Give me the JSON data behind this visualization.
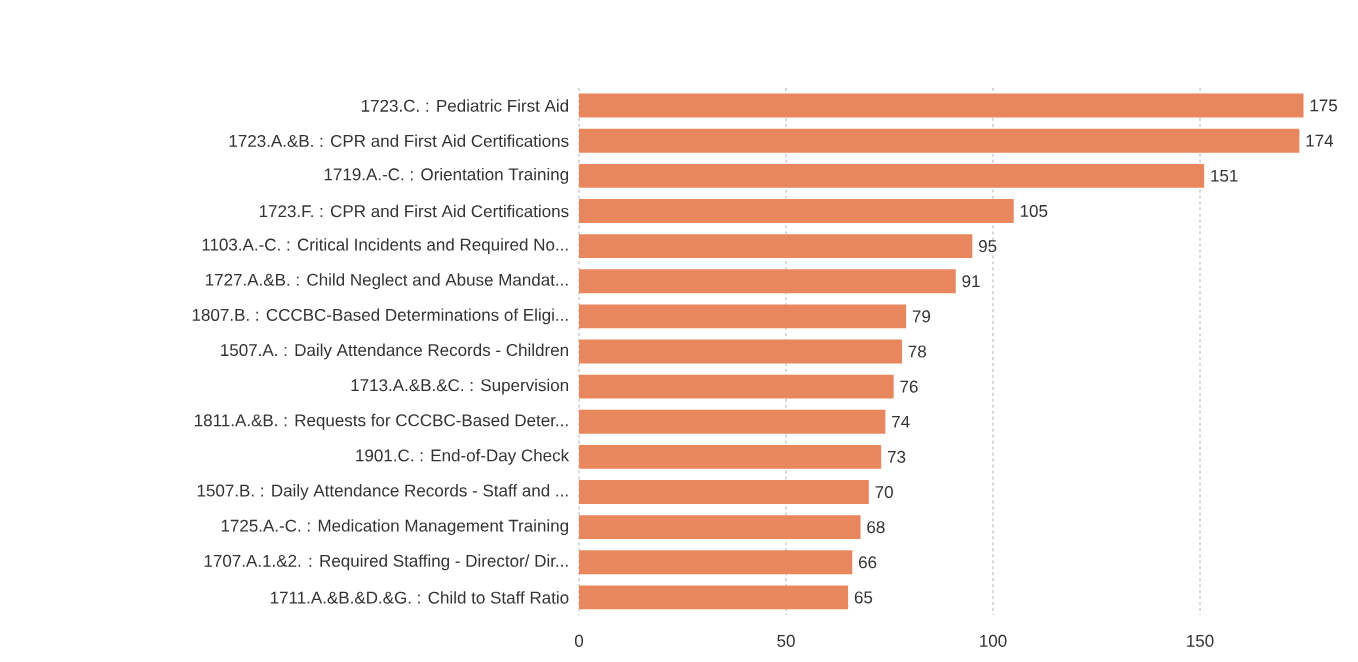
{
  "chart_data": {
    "type": "bar",
    "orientation": "horizontal",
    "categories": [
      "1723.C. : Pediatric First Aid",
      "1723.A.&B. : CPR and First Aid Certifications",
      "1719.A.-C. : Orientation Training",
      "1723.F. : CPR and First Aid Certifications",
      "1103.A.-C. : Critical Incidents and Required No...",
      "1727.A.&B. : Child Neglect and Abuse Mandat...",
      "1807.B. : CCCBC-Based Determinations of Eligi...",
      "1507.A. : Daily Attendance Records - Children",
      "1713.A.&B.&C. : Supervision",
      "1811.A.&B. : Requests for CCCBC-Based Deter...",
      "1901.C. : End-of-Day Check",
      "1507.B. : Daily Attendance Records - Staff and ...",
      "1725.A.-C. : Medication Management Training",
      "1707.A.1.&2. : Required Staffing - Director/ Dir...",
      "1711.A.&B.&D.&G. : Child to Staff Ratio"
    ],
    "values": [
      175,
      174,
      151,
      105,
      95,
      91,
      79,
      78,
      76,
      74,
      73,
      70,
      68,
      66,
      65
    ],
    "color": "#e8875d",
    "xlim": [
      0,
      175
    ],
    "xticks": [
      0,
      50,
      100,
      150
    ],
    "grid": "x",
    "data_labels": true
  }
}
